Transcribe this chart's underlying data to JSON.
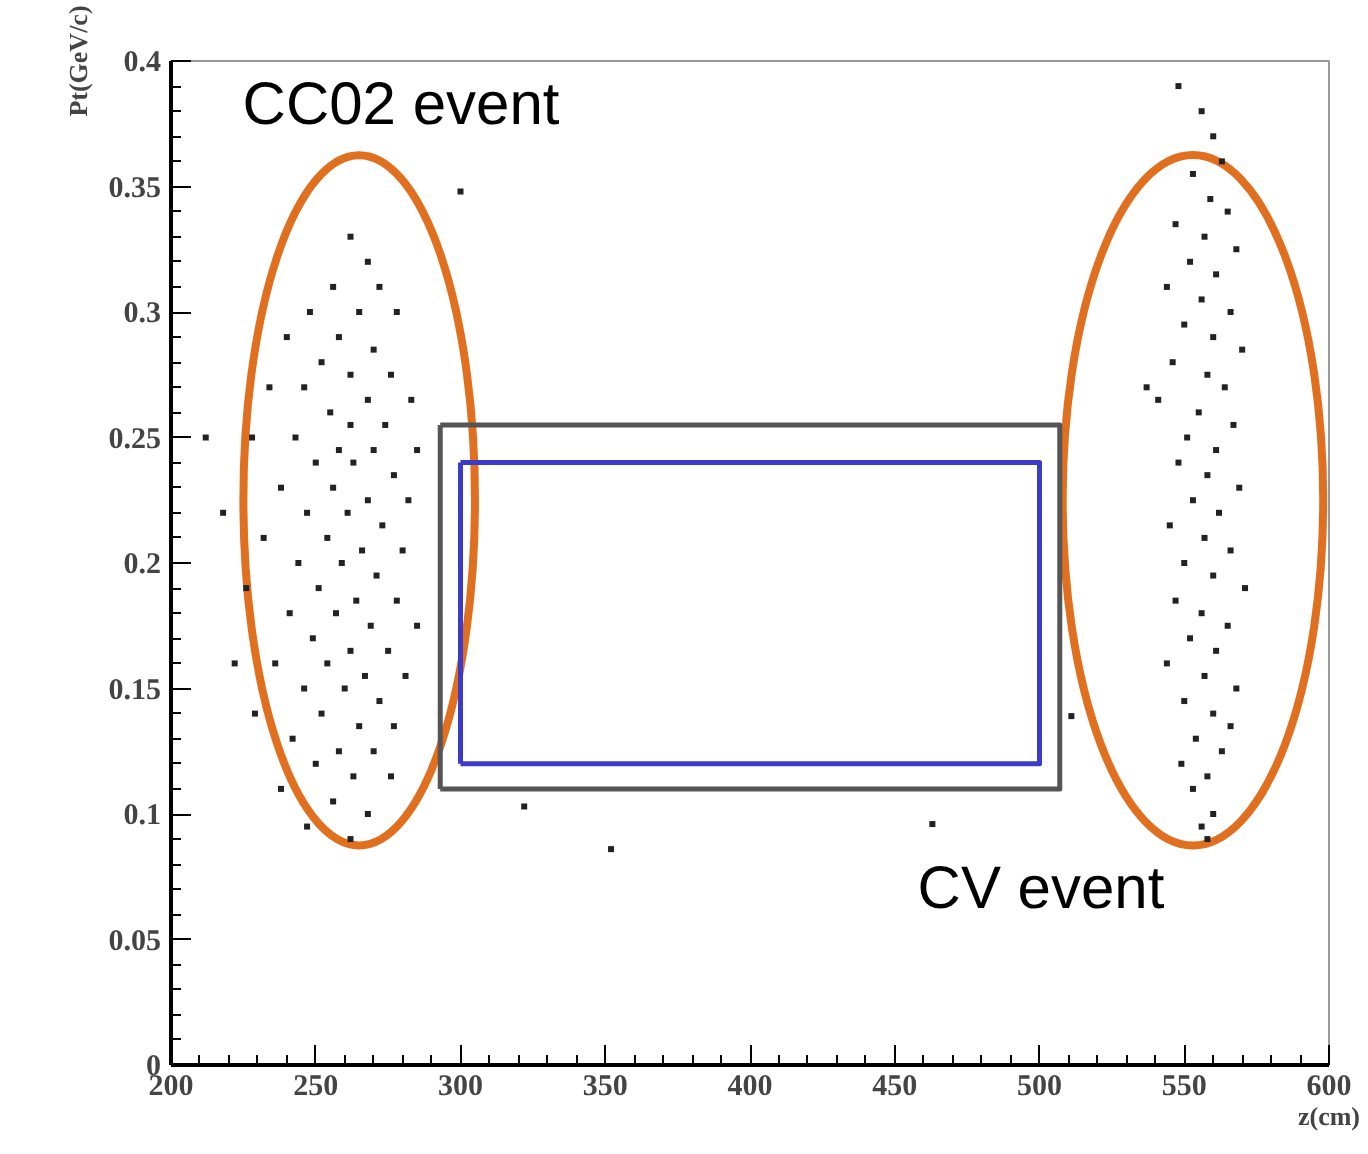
{
  "chart_data": {
    "type": "scatter",
    "xlabel": "z(cm)",
    "ylabel": "Pt(GeV/c)",
    "xlim": [
      200,
      600
    ],
    "xticks": [
      200,
      250,
      300,
      350,
      400,
      450,
      500,
      550,
      600
    ],
    "ylim": [
      0,
      0.4
    ],
    "yticks": [
      0,
      0.05,
      0.1,
      0.15,
      0.2,
      0.25,
      0.3,
      0.35,
      0.4
    ],
    "grid": false,
    "annotations": [
      "CC02 event",
      "CV event"
    ],
    "series": [
      {
        "type": "line",
        "color": "#555555",
        "x": [
          293,
          507,
          507,
          293
        ],
        "values": [
          0.255,
          0.255,
          0.11,
          0.11
        ]
      },
      {
        "type": "line",
        "color": "#3b3bc8",
        "x": [
          300,
          500,
          500,
          300
        ],
        "values": [
          0.24,
          0.24,
          0.12,
          0.12
        ]
      },
      {
        "type": "line",
        "color": "#555555",
        "x": [
          293,
          293
        ],
        "values": [
          0.11,
          0.255
        ]
      },
      {
        "type": "line",
        "color": "#3b3bc8",
        "x": [
          300,
          300
        ],
        "values": [
          0.12,
          0.24
        ]
      },
      {
        "color": "#222222",
        "marker": "square",
        "x": [
          262,
          268,
          256,
          272,
          248,
          265,
          278,
          240,
          258,
          270,
          252,
          262,
          276,
          234,
          246,
          268,
          283,
          255,
          262,
          274,
          228,
          243,
          258,
          270,
          285,
          250,
          263,
          277,
          238,
          256,
          268,
          282,
          247,
          261,
          273,
          232,
          254,
          266,
          280,
          244,
          259,
          271,
          226,
          251,
          264,
          278,
          241,
          257,
          269,
          285,
          249,
          262,
          275,
          236,
          254,
          267,
          281,
          246,
          260,
          272,
          229,
          252,
          265,
          277,
          242,
          258,
          270,
          250,
          263,
          276,
          238,
          256,
          268,
          247,
          262,
          222,
          212,
          218,
          300,
          322,
          352,
          463,
          511,
          548,
          556,
          560,
          563,
          553,
          559,
          565,
          547,
          557,
          568,
          552,
          561,
          544,
          556,
          566,
          550,
          560,
          570,
          546,
          558,
          564,
          541,
          555,
          567,
          551,
          561,
          548,
          558,
          569,
          553,
          562,
          545,
          557,
          566,
          550,
          560,
          571,
          547,
          556,
          565,
          552,
          561,
          544,
          557,
          568,
          550,
          560,
          566,
          554,
          563,
          549,
          558,
          553,
          560,
          556,
          558,
          537
        ],
        "values": [
          0.33,
          0.32,
          0.31,
          0.31,
          0.3,
          0.3,
          0.3,
          0.29,
          0.29,
          0.285,
          0.28,
          0.275,
          0.275,
          0.27,
          0.27,
          0.265,
          0.265,
          0.26,
          0.255,
          0.255,
          0.25,
          0.25,
          0.245,
          0.245,
          0.245,
          0.24,
          0.24,
          0.235,
          0.23,
          0.23,
          0.225,
          0.225,
          0.22,
          0.22,
          0.215,
          0.21,
          0.21,
          0.205,
          0.205,
          0.2,
          0.2,
          0.195,
          0.19,
          0.19,
          0.185,
          0.185,
          0.18,
          0.18,
          0.175,
          0.175,
          0.17,
          0.165,
          0.165,
          0.16,
          0.16,
          0.155,
          0.155,
          0.15,
          0.15,
          0.145,
          0.14,
          0.14,
          0.135,
          0.135,
          0.13,
          0.125,
          0.125,
          0.12,
          0.115,
          0.115,
          0.11,
          0.105,
          0.1,
          0.095,
          0.09,
          0.16,
          0.25,
          0.22,
          0.348,
          0.103,
          0.086,
          0.096,
          0.139,
          0.39,
          0.38,
          0.37,
          0.36,
          0.355,
          0.345,
          0.34,
          0.335,
          0.33,
          0.325,
          0.32,
          0.315,
          0.31,
          0.305,
          0.3,
          0.295,
          0.29,
          0.285,
          0.28,
          0.275,
          0.27,
          0.265,
          0.26,
          0.255,
          0.25,
          0.245,
          0.24,
          0.235,
          0.23,
          0.225,
          0.22,
          0.215,
          0.21,
          0.205,
          0.2,
          0.195,
          0.19,
          0.185,
          0.18,
          0.175,
          0.17,
          0.165,
          0.16,
          0.155,
          0.15,
          0.145,
          0.14,
          0.135,
          0.13,
          0.125,
          0.12,
          0.115,
          0.11,
          0.1,
          0.095,
          0.09,
          0.27
        ]
      }
    ]
  }
}
